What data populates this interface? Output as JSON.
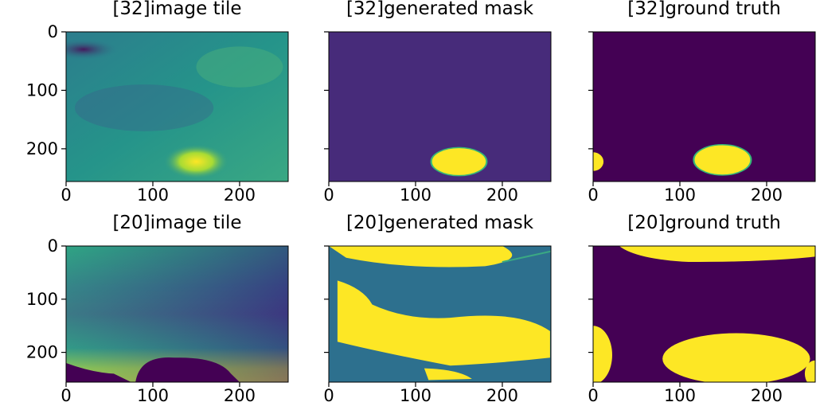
{
  "chart_data": [
    {
      "type": "image",
      "title": "[32]image tile",
      "xlim": [
        0,
        256
      ],
      "ylim": [
        256,
        0
      ],
      "xticks": [
        0,
        100,
        200
      ],
      "yticks": [
        0,
        100,
        200
      ],
      "ytick_labels": true
    },
    {
      "type": "image",
      "title": "[32]generated mask",
      "xlim": [
        0,
        256
      ],
      "ylim": [
        256,
        0
      ],
      "xticks": [
        0,
        100,
        200
      ],
      "yticks": [
        0,
        100,
        200
      ],
      "ytick_labels": false
    },
    {
      "type": "image",
      "title": "[32]ground truth",
      "xlim": [
        0,
        256
      ],
      "ylim": [
        256,
        0
      ],
      "xticks": [
        0,
        100,
        200
      ],
      "yticks": [
        0,
        100,
        200
      ],
      "ytick_labels": false
    },
    {
      "type": "image",
      "title": "[20]image tile",
      "xlim": [
        0,
        256
      ],
      "ylim": [
        256,
        0
      ],
      "xticks": [
        0,
        100,
        200
      ],
      "yticks": [
        0,
        100,
        200
      ],
      "ytick_labels": true
    },
    {
      "type": "image",
      "title": "[20]generated mask",
      "xlim": [
        0,
        256
      ],
      "ylim": [
        256,
        0
      ],
      "xticks": [
        0,
        100,
        200
      ],
      "yticks": [
        0,
        100,
        200
      ],
      "ytick_labels": false
    },
    {
      "type": "image",
      "title": "[20]ground truth",
      "xlim": [
        0,
        256
      ],
      "ylim": [
        256,
        0
      ],
      "xticks": [
        0,
        100,
        200
      ],
      "yticks": [
        0,
        100,
        200
      ],
      "ytick_labels": false
    }
  ]
}
